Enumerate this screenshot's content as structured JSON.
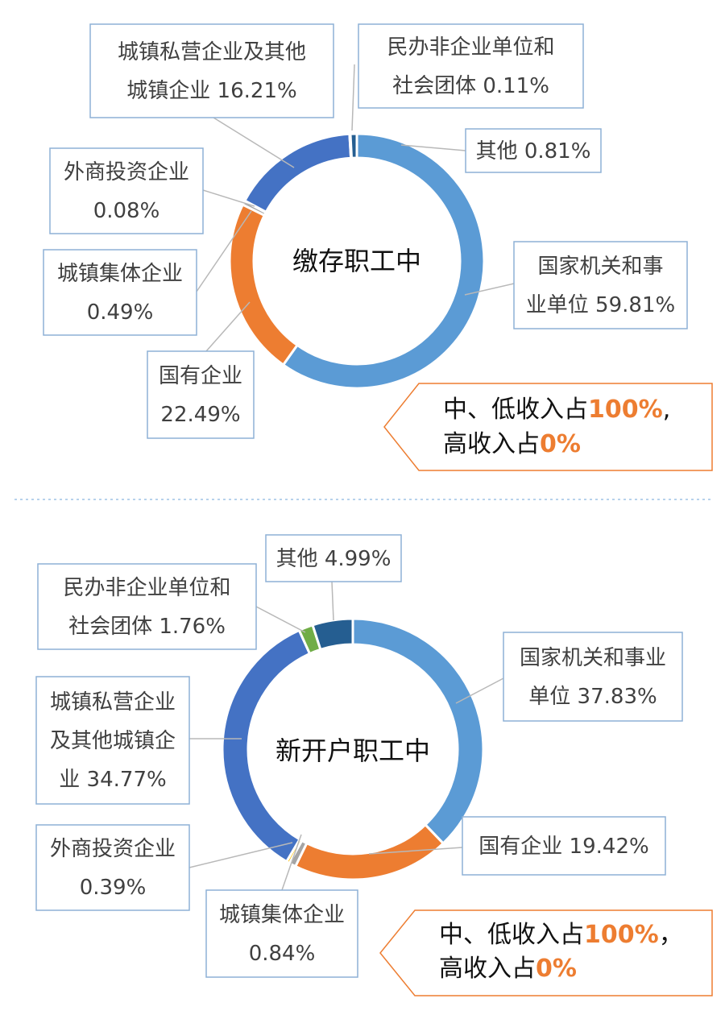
{
  "chart_data": [
    {
      "type": "pie",
      "variant": "donut",
      "center_label": "缴存职工中",
      "slices": [
        {
          "label": [
            "国家机关和事",
            "业单位 59.81%"
          ],
          "value": 59.81,
          "color": "#5b9bd5"
        },
        {
          "label": [
            "国有企业",
            "22.49%"
          ],
          "value": 22.49,
          "color": "#ed7d31"
        },
        {
          "label": [
            "城镇集体企业",
            "0.49%"
          ],
          "value": 0.49,
          "color": "#a5a5a5"
        },
        {
          "label": [
            "外商投资企业",
            "0.08%"
          ],
          "value": 0.08,
          "color": "#ffc000"
        },
        {
          "label": [
            "城镇私营企业及其他",
            "城镇企业 16.21%"
          ],
          "value": 16.21,
          "color": "#4472c4"
        },
        {
          "label": [
            "民办非企业单位和",
            "社会团体 0.11%"
          ],
          "value": 0.11,
          "color": "#70ad47"
        },
        {
          "label": [
            "其他 0.81%"
          ],
          "value": 0.81,
          "color": "#255e91"
        }
      ],
      "callout": {
        "line1_text": "中、低收入占",
        "line1_value": "100%",
        "line1_suffix": ",",
        "line2_text": "高收入占",
        "line2_value": "0%"
      }
    },
    {
      "type": "pie",
      "variant": "donut",
      "center_label": "新开户职工中",
      "slices": [
        {
          "label": [
            "国家机关和事业",
            "单位 37.83%"
          ],
          "value": 37.83,
          "color": "#5b9bd5"
        },
        {
          "label": [
            "国有企业 19.42%"
          ],
          "value": 19.42,
          "color": "#ed7d31"
        },
        {
          "label": [
            "城镇集体企业",
            "0.84%"
          ],
          "value": 0.84,
          "color": "#a5a5a5"
        },
        {
          "label": [
            "外商投资企业",
            "0.39%"
          ],
          "value": 0.39,
          "color": "#ffc000"
        },
        {
          "label": [
            "城镇私营企业",
            "及其他城镇企",
            "业 34.77%"
          ],
          "value": 34.77,
          "color": "#4472c4"
        },
        {
          "label": [
            "民办非企业单位和",
            "社会团体 1.76%"
          ],
          "value": 1.76,
          "color": "#70ad47"
        },
        {
          "label": [
            "其他 4.99%"
          ],
          "value": 4.99,
          "color": "#255e91"
        }
      ],
      "callout": {
        "line1_text": "中、低收入占",
        "line1_value": "100%",
        "line1_suffix": "，",
        "line2_text": "高收入占",
        "line2_value": "0%"
      }
    }
  ]
}
